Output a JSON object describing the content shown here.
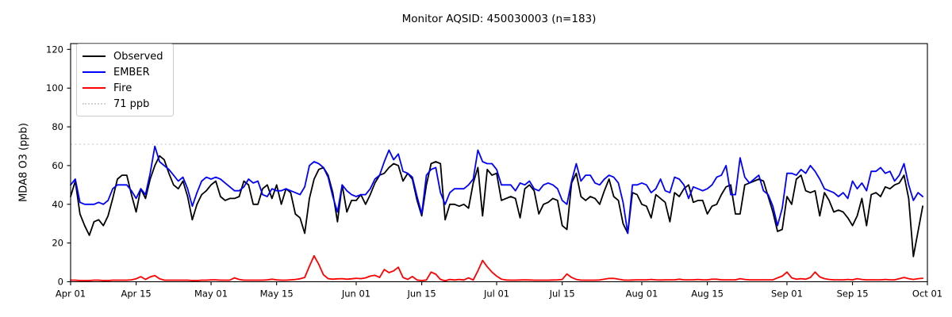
{
  "title": "Monitor AQSID: 450030003 (n=183)",
  "chart_data": {
    "type": "line",
    "title": "Monitor AQSID: 450030003 (n=183)",
    "xlabel": "",
    "ylabel": "MDA8 O3 (ppb)",
    "n_points": 183,
    "x_start": "Apr 01",
    "x_end": "Sep 30",
    "xlim_days": [
      0,
      183
    ],
    "ylim": [
      0,
      123
    ],
    "grid": false,
    "legend_position": "upper left",
    "y_ticks": [
      0,
      20,
      40,
      60,
      80,
      100,
      120
    ],
    "x_ticks": [
      {
        "day": 0,
        "label": "Apr 01"
      },
      {
        "day": 14,
        "label": "Apr 15"
      },
      {
        "day": 30,
        "label": "May 01"
      },
      {
        "day": 44,
        "label": "May 15"
      },
      {
        "day": 61,
        "label": "Jun 01"
      },
      {
        "day": 75,
        "label": "Jun 15"
      },
      {
        "day": 91,
        "label": "Jul 01"
      },
      {
        "day": 105,
        "label": "Jul 15"
      },
      {
        "day": 122,
        "label": "Aug 01"
      },
      {
        "day": 136,
        "label": "Aug 15"
      },
      {
        "day": 153,
        "label": "Sep 01"
      },
      {
        "day": 167,
        "label": "Sep 15"
      },
      {
        "day": 183,
        "label": "Oct 01"
      }
    ],
    "reference_line": {
      "label": "71 ppb",
      "value": 71,
      "color": "#d3d3d3",
      "style": "dotted"
    },
    "series": [
      {
        "name": "Observed",
        "color": "#000000",
        "values": [
          44,
          52,
          35,
          29,
          24,
          31,
          32,
          29,
          34,
          43,
          53,
          55,
          55,
          45,
          36,
          48,
          43,
          53,
          60,
          65,
          63,
          56,
          50,
          48,
          52,
          44,
          32,
          40,
          45,
          47,
          50,
          52,
          44,
          42,
          43,
          43,
          44,
          52,
          50,
          40,
          40,
          48,
          50,
          43,
          50,
          40,
          48,
          46,
          35,
          33,
          25,
          43,
          53,
          58,
          59,
          55,
          46,
          31,
          50,
          36,
          42,
          42,
          45,
          40,
          45,
          51,
          55,
          56,
          59,
          61,
          60,
          52,
          56,
          53,
          42,
          34,
          50,
          61,
          62,
          61,
          32,
          40,
          40,
          39,
          40,
          38,
          51,
          59,
          34,
          58,
          55,
          56,
          42,
          43,
          44,
          43,
          33,
          48,
          50,
          47,
          35,
          40,
          41,
          43,
          42,
          29,
          27,
          51,
          56,
          44,
          42,
          44,
          43,
          40,
          47,
          53,
          44,
          42,
          30,
          25,
          46,
          45,
          40,
          39,
          33,
          45,
          43,
          41,
          31,
          46,
          44,
          48,
          50,
          41,
          42,
          42,
          35,
          39,
          40,
          45,
          49,
          50,
          35,
          35,
          50,
          51,
          52,
          53,
          52,
          44,
          36,
          26,
          27,
          44,
          40,
          53,
          55,
          47,
          46,
          47,
          34,
          46,
          42,
          36,
          37,
          36,
          33,
          29,
          34,
          43,
          29,
          45,
          46,
          44,
          49,
          48,
          50,
          51,
          55,
          43,
          13,
          26,
          39
        ]
      },
      {
        "name": "EMBER",
        "color": "#0000ff",
        "values": [
          50,
          53,
          41,
          40,
          40,
          40,
          41,
          40,
          42,
          48,
          50,
          50,
          50,
          47,
          43,
          48,
          45,
          56,
          70,
          62,
          60,
          58,
          55,
          52,
          54,
          48,
          39,
          46,
          52,
          54,
          53,
          54,
          53,
          51,
          49,
          47,
          47,
          49,
          53,
          51,
          52,
          45,
          44,
          48,
          47,
          47,
          48,
          47,
          46,
          45,
          49,
          60,
          62,
          61,
          59,
          54,
          44,
          36,
          50,
          47,
          45,
          44,
          45,
          45,
          48,
          53,
          55,
          62,
          68,
          63,
          66,
          57,
          56,
          54,
          44,
          35,
          55,
          58,
          59,
          46,
          40,
          46,
          48,
          48,
          48,
          50,
          53,
          68,
          62,
          61,
          61,
          58,
          50,
          50,
          50,
          47,
          51,
          50,
          52,
          48,
          47,
          50,
          51,
          50,
          48,
          42,
          40,
          52,
          61,
          52,
          55,
          55,
          51,
          50,
          53,
          55,
          54,
          51,
          41,
          25,
          50,
          50,
          51,
          50,
          46,
          48,
          53,
          47,
          46,
          54,
          53,
          50,
          43,
          49,
          48,
          47,
          48,
          50,
          54,
          55,
          60,
          45,
          45,
          64,
          54,
          51,
          53,
          55,
          47,
          45,
          39,
          29,
          38,
          56,
          56,
          55,
          58,
          56,
          60,
          57,
          53,
          48,
          47,
          46,
          44,
          46,
          43,
          52,
          48,
          51,
          47,
          57,
          57,
          59,
          56,
          57,
          52,
          55,
          61,
          50,
          42,
          46,
          44
        ]
      },
      {
        "name": "Fire",
        "color": "#ff0000",
        "values": [
          0.8,
          0.8,
          0.6,
          0.6,
          0.6,
          0.8,
          0.8,
          0.6,
          0.6,
          0.8,
          0.8,
          0.8,
          0.8,
          1.0,
          1.5,
          2.6,
          1.2,
          2.5,
          3.2,
          1.5,
          0.8,
          0.8,
          0.8,
          0.8,
          0.8,
          0.8,
          0.6,
          0.6,
          0.8,
          0.8,
          1.0,
          1.0,
          0.8,
          0.8,
          0.8,
          2.0,
          1.2,
          0.8,
          0.8,
          0.8,
          0.8,
          0.8,
          1.0,
          1.3,
          1.0,
          0.8,
          0.8,
          1.0,
          1.2,
          1.5,
          2.2,
          8.0,
          13.4,
          9.0,
          3.6,
          1.6,
          1.3,
          1.5,
          1.6,
          1.3,
          1.5,
          1.8,
          1.6,
          2.0,
          2.9,
          3.3,
          2.2,
          6.3,
          4.7,
          5.6,
          7.5,
          2.2,
          1.2,
          2.7,
          0.9,
          0.6,
          0.9,
          5.0,
          3.9,
          1.2,
          0.5,
          1.2,
          0.9,
          1.2,
          0.9,
          2.0,
          0.9,
          5.6,
          11.0,
          7.7,
          5.0,
          2.9,
          1.3,
          0.9,
          0.8,
          0.8,
          0.9,
          1.0,
          0.9,
          0.8,
          0.8,
          0.8,
          0.8,
          0.9,
          1.0,
          1.2,
          4.0,
          2.2,
          1.2,
          0.8,
          0.8,
          0.8,
          0.8,
          0.9,
          1.3,
          1.7,
          1.7,
          1.3,
          0.9,
          0.8,
          0.9,
          1.0,
          1.0,
          1.0,
          1.2,
          1.0,
          0.9,
          1.0,
          1.0,
          1.0,
          1.3,
          1.0,
          1.0,
          1.0,
          1.2,
          1.0,
          1.0,
          1.3,
          1.3,
          1.0,
          1.0,
          1.0,
          1.0,
          1.6,
          1.2,
          1.0,
          1.0,
          1.0,
          1.0,
          1.0,
          1.0,
          2.0,
          2.9,
          5.0,
          2.0,
          1.3,
          1.6,
          1.3,
          2.2,
          5.0,
          2.5,
          1.6,
          1.2,
          1.0,
          1.0,
          1.0,
          1.2,
          1.0,
          1.6,
          1.2,
          1.0,
          1.0,
          1.0,
          1.0,
          1.2,
          1.0,
          1.0,
          1.6,
          2.2,
          1.6,
          1.2,
          1.6,
          1.8
        ]
      }
    ]
  }
}
